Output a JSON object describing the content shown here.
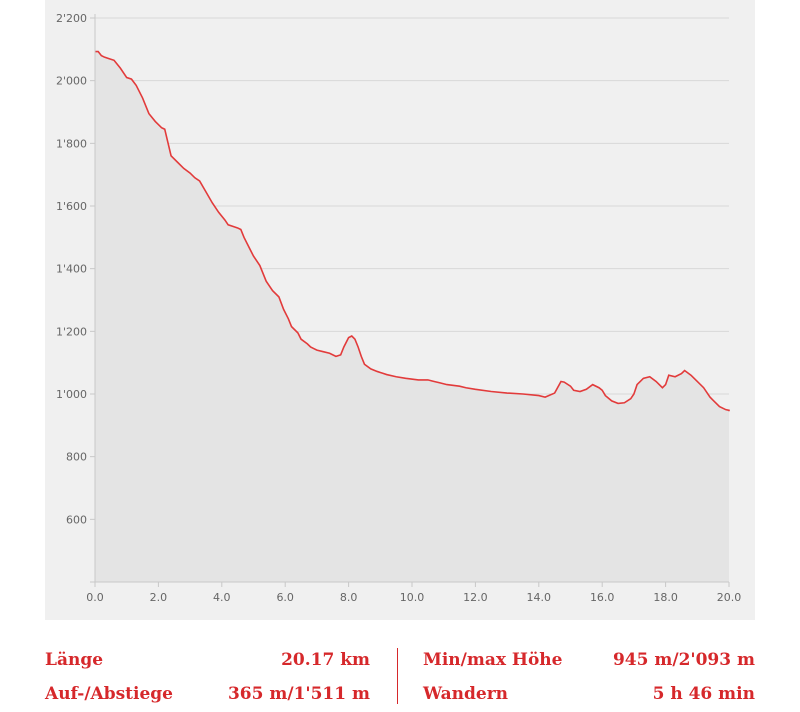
{
  "colors": {
    "line": "#e23b3b",
    "area": "#e4e4e4",
    "panel": "#f0f0f0",
    "grid": "#d8d8d8",
    "axis": "#c8c8c8",
    "accent": "#d6282b"
  },
  "chart_data": {
    "type": "area",
    "title": "",
    "xlabel": "",
    "ylabel": "",
    "xlim": [
      0,
      20.17
    ],
    "ylim": [
      400,
      2200
    ],
    "grid": true,
    "x_ticks": [
      "0.0",
      "2.0",
      "4.0",
      "6.0",
      "8.0",
      "10.0",
      "12.0",
      "14.0",
      "16.0",
      "18.0",
      "20.0"
    ],
    "y_ticks": [
      "600",
      "800",
      "1'000",
      "1'200",
      "1'400",
      "1'600",
      "1'800",
      "2'000",
      "2'200"
    ],
    "x_tick_values": [
      0,
      2,
      4,
      6,
      8,
      10,
      12,
      14,
      16,
      18,
      20
    ],
    "y_tick_values": [
      600,
      800,
      1000,
      1200,
      1400,
      1600,
      1800,
      2000,
      2200
    ],
    "series": [
      {
        "x": [
          0.0,
          0.1,
          0.2,
          0.3,
          0.45,
          0.6,
          0.8,
          1.0,
          1.15,
          1.3,
          1.5,
          1.7,
          1.9,
          2.1,
          2.2,
          2.4,
          2.6,
          2.8,
          3.0,
          3.15,
          3.3,
          3.5,
          3.7,
          3.9,
          4.1,
          4.2,
          4.35,
          4.5,
          4.6,
          4.7,
          4.9,
          5.0,
          5.2,
          5.4,
          5.6,
          5.8,
          5.95,
          6.1,
          6.2,
          6.4,
          6.5,
          6.7,
          6.8,
          6.9,
          7.0,
          7.2,
          7.4,
          7.6,
          7.75,
          7.85,
          8.0,
          8.1,
          8.2,
          8.3,
          8.4,
          8.5,
          8.7,
          8.9,
          9.2,
          9.5,
          9.8,
          10.2,
          10.5,
          10.7,
          10.9,
          11.1,
          11.5,
          11.7,
          12.0,
          12.5,
          13.0,
          13.5,
          14.0,
          14.2,
          14.5,
          14.7,
          14.8,
          15.0,
          15.1,
          15.3,
          15.5,
          15.7,
          15.9,
          16.0,
          16.1,
          16.3,
          16.5,
          16.7,
          16.9,
          17.0,
          17.1,
          17.3,
          17.5,
          17.7,
          17.9,
          18.0,
          18.1,
          18.3,
          18.5,
          18.6,
          18.8,
          19.0,
          19.2,
          19.4,
          19.5,
          19.7,
          19.9,
          20.0,
          20.17
        ],
        "y": [
          2093,
          2093,
          2080,
          2075,
          2070,
          2065,
          2040,
          2010,
          2005,
          1985,
          1945,
          1895,
          1870,
          1850,
          1845,
          1760,
          1740,
          1720,
          1705,
          1690,
          1680,
          1645,
          1610,
          1580,
          1555,
          1540,
          1535,
          1530,
          1525,
          1500,
          1460,
          1440,
          1410,
          1360,
          1330,
          1310,
          1270,
          1240,
          1215,
          1195,
          1175,
          1160,
          1150,
          1145,
          1140,
          1135,
          1130,
          1120,
          1125,
          1150,
          1180,
          1185,
          1175,
          1150,
          1120,
          1095,
          1080,
          1072,
          1062,
          1055,
          1050,
          1045,
          1045,
          1040,
          1035,
          1030,
          1025,
          1020,
          1015,
          1008,
          1003,
          1000,
          995,
          990,
          1003,
          1040,
          1038,
          1025,
          1012,
          1008,
          1015,
          1030,
          1020,
          1012,
          995,
          978,
          970,
          972,
          985,
          1000,
          1030,
          1050,
          1055,
          1040,
          1020,
          1030,
          1060,
          1055,
          1065,
          1075,
          1060,
          1040,
          1020,
          990,
          980,
          960,
          950,
          948,
          945
        ]
      }
    ]
  },
  "stats": {
    "length_label": "Länge",
    "length_value": "20.17 km",
    "ascent_label": "Auf-/Abstiege",
    "ascent_value": "365 m/1'511 m",
    "altitude_label": "Min/max Höhe",
    "altitude_value": "945 m/2'093 m",
    "activity_label": "Wandern",
    "activity_value": "5 h 46 min"
  }
}
